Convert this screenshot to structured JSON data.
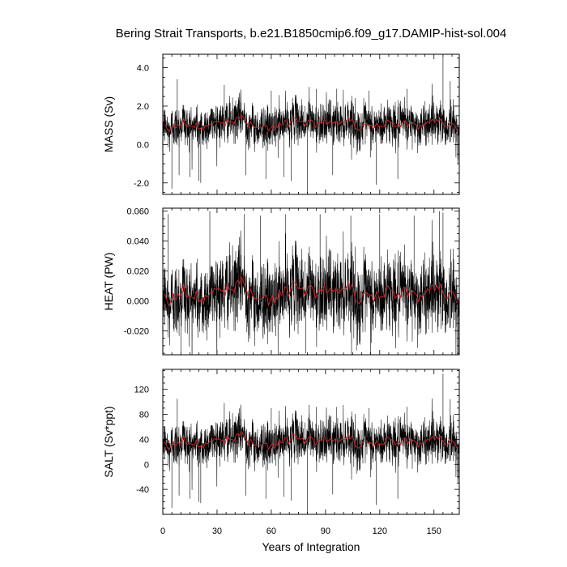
{
  "title": "Bering Strait Transports, b.e21.B1850cmip6.f09_g17.DAMIP-hist-sol.004",
  "xlabel": "Years of Integration",
  "chart_data": [
    {
      "type": "line",
      "ylabel": "MASS (Sv)",
      "xlim": [
        0,
        164
      ],
      "ylim": [
        -2.6,
        4.7
      ],
      "yticks": [
        -2.0,
        0.0,
        2.0,
        4.0
      ],
      "ytick_labels": [
        "-2.0",
        "0.0",
        "2.0",
        "4.0"
      ],
      "xticks": [
        0,
        30,
        60,
        90,
        120,
        150
      ],
      "series": [
        {
          "color": "#000000",
          "kind": "monthly",
          "mean": 1.05,
          "amplitude": 0.55,
          "x": [
            5,
            8,
            9,
            15,
            20,
            21,
            34,
            46,
            57,
            60,
            67,
            71,
            80,
            81,
            85,
            94,
            96,
            114,
            118,
            130,
            135,
            155,
            159
          ],
          "y": [
            -2.3,
            3.4,
            -1.6,
            -1.7,
            -1.9,
            -2.0,
            3.1,
            -1.6,
            -1.8,
            2.8,
            -1.7,
            -1.9,
            -2.5,
            3.0,
            2.9,
            -1.6,
            2.9,
            2.8,
            -2.1,
            -1.8,
            2.9,
            4.6,
            3.3
          ]
        },
        {
          "color": "#d62020",
          "kind": "annual mean",
          "mean": 1.05,
          "amplitude": 0.18
        }
      ]
    },
    {
      "type": "line",
      "ylabel": "HEAT (PW)",
      "xlim": [
        0,
        164
      ],
      "ylim": [
        -0.036,
        0.062
      ],
      "yticks": [
        -0.02,
        0.0,
        0.02,
        0.04,
        0.06
      ],
      "ytick_labels": [
        "-0.020",
        "0.000",
        "0.020",
        "0.040",
        "0.060"
      ],
      "xticks": [
        0,
        30,
        60,
        90,
        120,
        150
      ],
      "series": [
        {
          "color": "#000000",
          "kind": "monthly",
          "mean": 0.004,
          "amplitude": 0.013,
          "x": [
            3,
            10,
            26,
            45,
            54,
            68,
            79,
            87,
            104,
            120,
            139,
            153,
            155
          ],
          "y": [
            0.058,
            -0.035,
            0.06,
            0.058,
            0.057,
            0.058,
            -0.035,
            0.058,
            0.057,
            0.058,
            0.057,
            0.06,
            0.059
          ]
        },
        {
          "color": "#d62020",
          "kind": "annual mean",
          "mean": 0.005,
          "amplitude": 0.004
        }
      ]
    },
    {
      "type": "line",
      "ylabel": "SALT (Sv*ppt)",
      "xlim": [
        0,
        164
      ],
      "ylim": [
        -80,
        152
      ],
      "yticks": [
        -40,
        0,
        40,
        80,
        120
      ],
      "ytick_labels": [
        "-40",
        "0",
        "40",
        "80",
        "120"
      ],
      "xticks": [
        0,
        30,
        60,
        90,
        120,
        150
      ],
      "xtick_labels": [
        "0",
        "30",
        "60",
        "90",
        "120",
        "150"
      ],
      "series": [
        {
          "color": "#000000",
          "kind": "monthly",
          "mean": 36,
          "amplitude": 18,
          "x": [
            5,
            8,
            9,
            15,
            20,
            21,
            34,
            46,
            57,
            60,
            67,
            71,
            80,
            81,
            85,
            94,
            96,
            114,
            118,
            130,
            135,
            155,
            159
          ],
          "y": [
            -70,
            105,
            -50,
            -55,
            -60,
            -62,
            98,
            -50,
            -55,
            90,
            -52,
            -58,
            -78,
            95,
            92,
            -48,
            92,
            90,
            -65,
            -55,
            92,
            145,
            104
          ]
        },
        {
          "color": "#d62020",
          "kind": "annual mean",
          "mean": 36,
          "amplitude": 6
        }
      ]
    }
  ]
}
